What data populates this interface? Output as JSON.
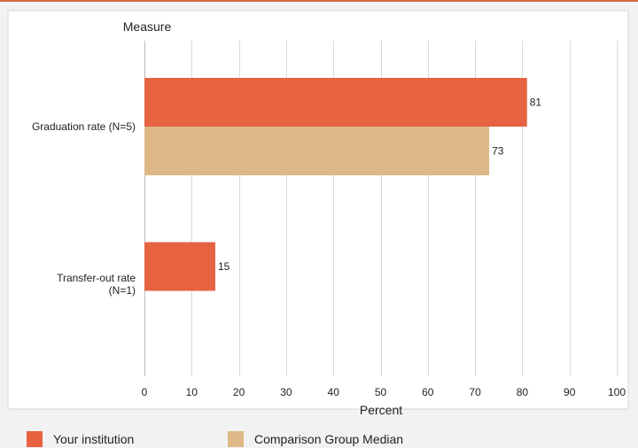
{
  "chart_data": {
    "type": "bar",
    "orientation": "horizontal",
    "title": "",
    "ylabel": "Measure",
    "xlabel": "Percent",
    "xlim": [
      0,
      100
    ],
    "x_ticks": [
      "0",
      "10",
      "20",
      "30",
      "40",
      "50",
      "60",
      "70",
      "80",
      "90",
      "100"
    ],
    "grid": true,
    "legend_position": "bottom",
    "categories": [
      {
        "lines": [
          "Graduation rate (N=5)"
        ]
      },
      {
        "lines": [
          "Transfer-out rate",
          "(N=1)"
        ]
      }
    ],
    "series": [
      {
        "name": "Your institution",
        "color": "#e66240",
        "values": [
          81,
          15
        ]
      },
      {
        "name": "Comparison Group Median",
        "color": "#deb887",
        "values": [
          73,
          null
        ]
      }
    ]
  }
}
